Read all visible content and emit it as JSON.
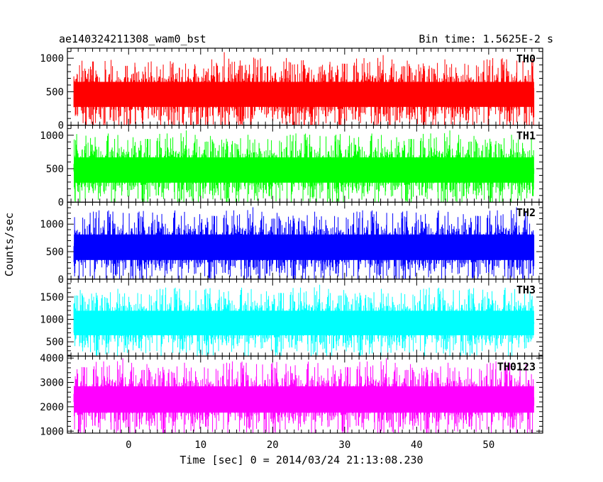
{
  "header": {
    "left_title": "ae140324211308_wam0_bst",
    "right_title": "Bin time: 1.5625E-2 s"
  },
  "chart_data": {
    "type": "line",
    "xlabel": "Time [sec] 0 = 2014/03/24 21:13:08.230",
    "ylabel": "Counts/sec",
    "xlim": [
      -8.5,
      57.5
    ],
    "x_ticks": [
      0,
      10,
      20,
      30,
      40,
      50
    ],
    "x_tick_labels": [
      "0",
      "10",
      "20",
      "30",
      "40",
      "50"
    ],
    "data_x_range": [
      -7.6,
      56.3
    ],
    "panels": [
      {
        "name": "TH0",
        "color": "#ff0000",
        "ylim": [
          0,
          1150
        ],
        "ticks": [
          0,
          500,
          1000
        ],
        "tick_labels": [
          "0",
          "500",
          "1000"
        ],
        "mean": 460,
        "low": 80,
        "high": 1120
      },
      {
        "name": "TH1",
        "color": "#00ff00",
        "ylim": [
          0,
          1150
        ],
        "ticks": [
          0,
          500,
          1000
        ],
        "tick_labels": [
          "0",
          "500",
          "1000"
        ],
        "mean": 480,
        "low": 30,
        "high": 1080
      },
      {
        "name": "TH2",
        "color": "#0000ff",
        "ylim": [
          0,
          1400
        ],
        "ticks": [
          0,
          500,
          1000
        ],
        "tick_labels": [
          "0",
          "500",
          "1000"
        ],
        "mean": 580,
        "low": 60,
        "high": 1350
      },
      {
        "name": "TH3",
        "color": "#00ffff",
        "ylim": [
          180,
          1900
        ],
        "ticks": [
          500,
          1000,
          1500
        ],
        "tick_labels": [
          "500",
          "1000",
          "1500"
        ],
        "mean": 920,
        "low": 280,
        "high": 1800
      },
      {
        "name": "TH0123",
        "color": "#ff00ff",
        "ylim": [
          920,
          4080
        ],
        "ticks": [
          1000,
          2000,
          3000,
          4000
        ],
        "tick_labels": [
          "1000",
          "2000",
          "3000",
          "4000"
        ],
        "mean": 2300,
        "low": 1000,
        "high": 4000
      }
    ]
  }
}
